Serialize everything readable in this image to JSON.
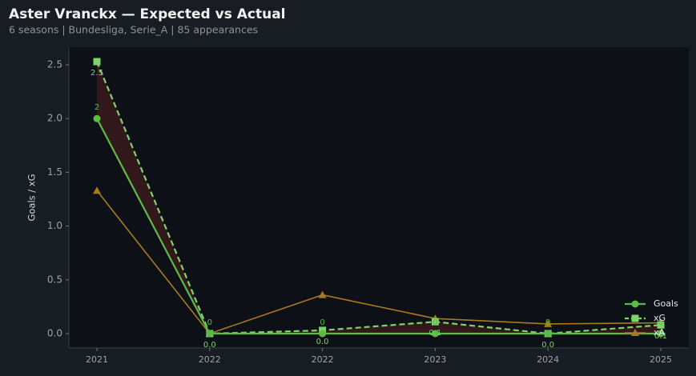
{
  "chart_data": {
    "type": "line",
    "title": "Aster Vranckx — Expected vs Actual",
    "subtitle": "6 seasons | Bundesliga, Serie_A | 85 appearances",
    "y_label": "Goals / xG",
    "categories": [
      "2021",
      "2022",
      "2022",
      "2023",
      "2024",
      "2025"
    ],
    "series": [
      {
        "name": "Goals",
        "color": "#5cbb45",
        "values": [
          2,
          0,
          0,
          0,
          0,
          0
        ]
      },
      {
        "name": "xG",
        "color": "#7ed36a",
        "values": [
          2.53,
          0.0,
          0.03,
          0.11,
          0.0,
          0.08
        ],
        "value_labels": [
          "2.5",
          "0.0",
          "0.0",
          "0.1",
          "0.0",
          "0.1"
        ]
      },
      {
        "name": "xA",
        "color": "#a8791f",
        "values": [
          1.33,
          0.0,
          0.36,
          0.14,
          0.09,
          0.1
        ]
      }
    ],
    "ylim": [
      -0.134,
      2.664
    ],
    "yticks": [
      {
        "value": 0,
        "label": "0.0"
      },
      {
        "value": 0.5,
        "label": "0.5"
      },
      {
        "value": 1,
        "label": "1.0"
      },
      {
        "value": 1.5,
        "label": "1.5"
      },
      {
        "value": 2,
        "label": "2.0"
      },
      {
        "value": 2.5,
        "label": "2.5"
      }
    ],
    "legend": "lower right"
  }
}
